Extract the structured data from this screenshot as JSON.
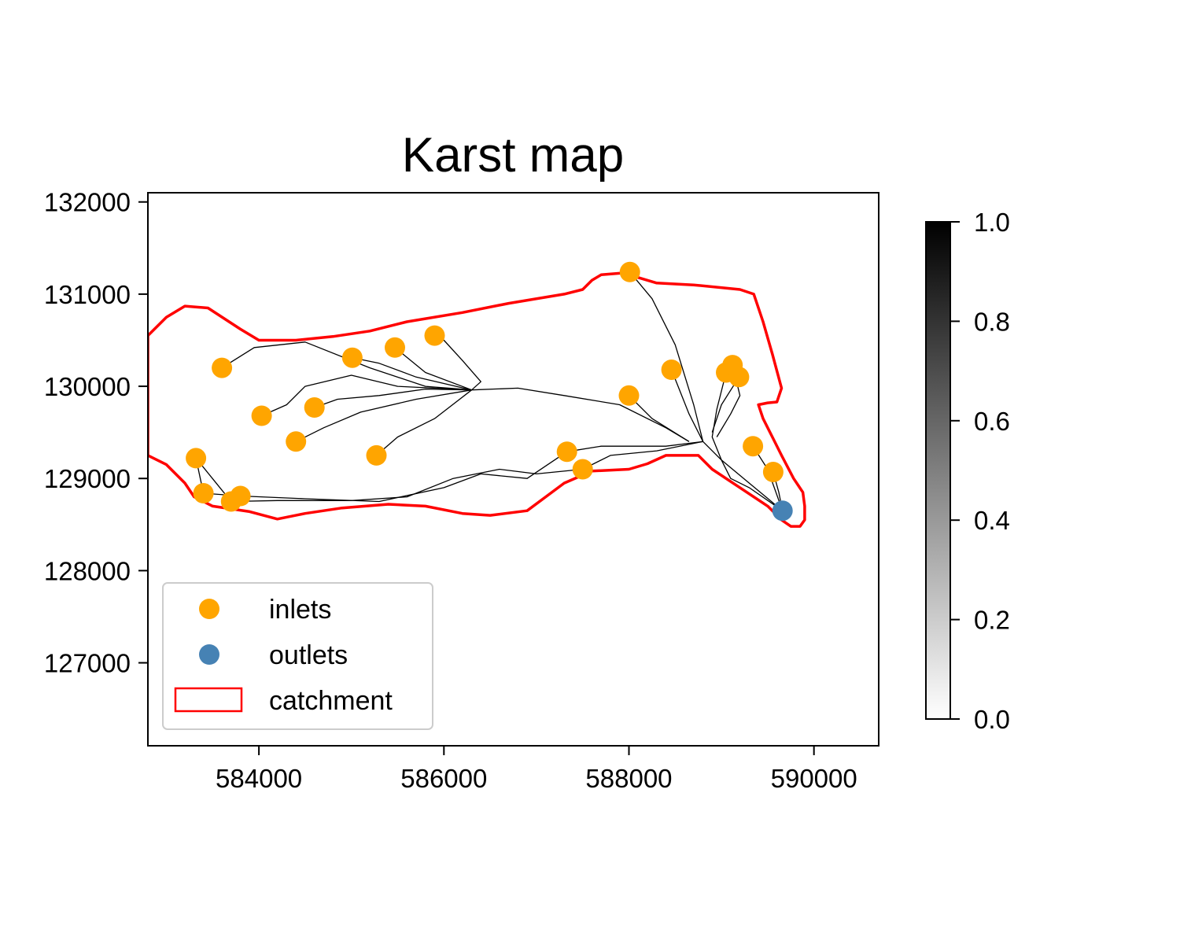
{
  "chart_data": {
    "type": "scatter",
    "title": "Karst map",
    "xlabel": "",
    "ylabel": "",
    "xlim": [
      582800,
      590700
    ],
    "ylim": [
      126100,
      132100
    ],
    "xticks": [
      584000,
      586000,
      588000,
      590000
    ],
    "yticks": [
      127000,
      128000,
      129000,
      130000,
      131000,
      132000
    ],
    "legend_position": "lower-left",
    "colors": {
      "inlets": "#FFA500",
      "outlets": "#4682B4",
      "catchment": "#FF0000",
      "conduits": "#000000"
    },
    "series": [
      {
        "name": "inlets",
        "marker": "circle",
        "points": [
          [
            583600,
            130200
          ],
          [
            584030,
            129680
          ],
          [
            584600,
            129770
          ],
          [
            584400,
            129400
          ],
          [
            585010,
            130310
          ],
          [
            585470,
            130420
          ],
          [
            585900,
            130550
          ],
          [
            585270,
            129250
          ],
          [
            583320,
            129220
          ],
          [
            583400,
            128840
          ],
          [
            583700,
            128750
          ],
          [
            583800,
            128810
          ],
          [
            588010,
            131240
          ],
          [
            588000,
            129900
          ],
          [
            588460,
            130180
          ],
          [
            589050,
            130150
          ],
          [
            589120,
            130230
          ],
          [
            589190,
            130100
          ],
          [
            589340,
            129350
          ],
          [
            589560,
            129070
          ],
          [
            587330,
            129290
          ],
          [
            587500,
            129100
          ]
        ]
      },
      {
        "name": "outlets",
        "marker": "circle",
        "points": [
          [
            589660,
            128650
          ]
        ]
      },
      {
        "name": "catchment",
        "type": "polygon",
        "points": [
          [
            582800,
            130550
          ],
          [
            583000,
            130750
          ],
          [
            583200,
            130870
          ],
          [
            583450,
            130850
          ],
          [
            583800,
            130620
          ],
          [
            584000,
            130500
          ],
          [
            584400,
            130500
          ],
          [
            584800,
            130540
          ],
          [
            585200,
            130600
          ],
          [
            585600,
            130700
          ],
          [
            586200,
            130800
          ],
          [
            586700,
            130900
          ],
          [
            587300,
            131000
          ],
          [
            587500,
            131050
          ],
          [
            587600,
            131150
          ],
          [
            587700,
            131210
          ],
          [
            587950,
            131230
          ],
          [
            588100,
            131180
          ],
          [
            588300,
            131120
          ],
          [
            588700,
            131100
          ],
          [
            589200,
            131050
          ],
          [
            589350,
            131000
          ],
          [
            589450,
            130700
          ],
          [
            589550,
            130350
          ],
          [
            589650,
            129980
          ],
          [
            589600,
            129830
          ],
          [
            589500,
            129820
          ],
          [
            589400,
            129800
          ],
          [
            589450,
            129650
          ],
          [
            589550,
            129450
          ],
          [
            589650,
            129250
          ],
          [
            589780,
            129000
          ],
          [
            589880,
            128850
          ],
          [
            589900,
            128700
          ],
          [
            589900,
            128550
          ],
          [
            589850,
            128480
          ],
          [
            589750,
            128480
          ],
          [
            589650,
            128550
          ],
          [
            589500,
            128700
          ],
          [
            589200,
            128900
          ],
          [
            588900,
            129100
          ],
          [
            588750,
            129250
          ],
          [
            588400,
            129250
          ],
          [
            588200,
            129160
          ],
          [
            588000,
            129100
          ],
          [
            587600,
            129080
          ],
          [
            587300,
            128950
          ],
          [
            587100,
            128800
          ],
          [
            586900,
            128650
          ],
          [
            586500,
            128600
          ],
          [
            586200,
            128620
          ],
          [
            585800,
            128700
          ],
          [
            585400,
            128720
          ],
          [
            584900,
            128680
          ],
          [
            584500,
            128620
          ],
          [
            584200,
            128560
          ],
          [
            583900,
            128640
          ],
          [
            583500,
            128700
          ],
          [
            583300,
            128800
          ],
          [
            583200,
            128950
          ],
          [
            583000,
            129150
          ],
          [
            582800,
            129250
          ]
        ]
      }
    ],
    "conduits": [
      [
        [
          583600,
          130200
        ],
        [
          583950,
          130420
        ],
        [
          584500,
          130480
        ],
        [
          585200,
          130200
        ],
        [
          585800,
          130000
        ],
        [
          586300,
          129960
        ]
      ],
      [
        [
          584030,
          129680
        ],
        [
          584300,
          129800
        ],
        [
          584500,
          130000
        ],
        [
          585000,
          130120
        ],
        [
          585500,
          130000
        ],
        [
          586300,
          129960
        ]
      ],
      [
        [
          584600,
          129770
        ],
        [
          584850,
          129860
        ],
        [
          585300,
          129900
        ],
        [
          585800,
          129970
        ],
        [
          586300,
          129960
        ]
      ],
      [
        [
          584400,
          129400
        ],
        [
          584700,
          129550
        ],
        [
          585100,
          129720
        ],
        [
          585700,
          129860
        ],
        [
          586300,
          129960
        ]
      ],
      [
        [
          585010,
          130310
        ],
        [
          585300,
          130250
        ],
        [
          585700,
          130100
        ],
        [
          586300,
          129960
        ]
      ],
      [
        [
          585470,
          130420
        ],
        [
          585800,
          130150
        ],
        [
          586300,
          129960
        ]
      ],
      [
        [
          585900,
          130550
        ],
        [
          586000,
          130500
        ],
        [
          586200,
          130280
        ],
        [
          586400,
          130050
        ],
        [
          586300,
          129960
        ]
      ],
      [
        [
          585270,
          129250
        ],
        [
          585500,
          129450
        ],
        [
          585900,
          129650
        ],
        [
          586300,
          129960
        ]
      ],
      [
        [
          586300,
          129960
        ],
        [
          586800,
          129980
        ],
        [
          587300,
          129900
        ],
        [
          587900,
          129800
        ],
        [
          588400,
          129550
        ],
        [
          588650,
          129400
        ]
      ],
      [
        [
          588010,
          131240
        ],
        [
          588250,
          130950
        ],
        [
          588500,
          130450
        ],
        [
          588700,
          129800
        ],
        [
          588800,
          129400
        ]
      ],
      [
        [
          588000,
          129900
        ],
        [
          588250,
          129650
        ],
        [
          588650,
          129400
        ]
      ],
      [
        [
          588460,
          130180
        ],
        [
          588650,
          129700
        ],
        [
          588800,
          129400
        ]
      ],
      [
        [
          589050,
          130150
        ],
        [
          588950,
          129750
        ],
        [
          588900,
          129450
        ],
        [
          589000,
          129200
        ],
        [
          589100,
          129000
        ],
        [
          589300,
          128900
        ],
        [
          589660,
          128650
        ]
      ],
      [
        [
          589120,
          130230
        ],
        [
          589200,
          129900
        ],
        [
          589100,
          129700
        ],
        [
          588950,
          129450
        ]
      ],
      [
        [
          589190,
          130100
        ],
        [
          589000,
          129800
        ],
        [
          588900,
          129500
        ]
      ],
      [
        [
          589340,
          129350
        ],
        [
          589500,
          129100
        ],
        [
          589660,
          128650
        ]
      ],
      [
        [
          589560,
          129070
        ],
        [
          589620,
          128850
        ],
        [
          589660,
          128650
        ]
      ],
      [
        [
          588800,
          129400
        ],
        [
          589000,
          129200
        ],
        [
          589300,
          128950
        ],
        [
          589660,
          128650
        ]
      ],
      [
        [
          587330,
          129290
        ],
        [
          587700,
          129350
        ],
        [
          588400,
          129350
        ],
        [
          588800,
          129400
        ]
      ],
      [
        [
          587500,
          129100
        ],
        [
          587800,
          129250
        ],
        [
          588300,
          129300
        ],
        [
          588800,
          129400
        ]
      ],
      [
        [
          583320,
          129220
        ],
        [
          583400,
          128840
        ],
        [
          583800,
          128810
        ],
        [
          584500,
          128780
        ],
        [
          585300,
          128750
        ],
        [
          586000,
          128900
        ],
        [
          586400,
          129050
        ],
        [
          586900,
          129000
        ],
        [
          587330,
          129290
        ]
      ],
      [
        [
          583700,
          128750
        ],
        [
          584200,
          128760
        ],
        [
          585000,
          128760
        ],
        [
          585600,
          128800
        ],
        [
          586100,
          129000
        ],
        [
          586600,
          129100
        ],
        [
          587000,
          129050
        ],
        [
          587500,
          129100
        ]
      ],
      [
        [
          583320,
          129220
        ],
        [
          583700,
          128750
        ]
      ]
    ],
    "colorbar": {
      "min": 0.0,
      "max": 1.0,
      "ticks": [
        "0.0",
        "0.2",
        "0.4",
        "0.6",
        "0.8",
        "1.0"
      ],
      "colormap": "binary (white to black)"
    },
    "legend": [
      {
        "label": "inlets",
        "kind": "marker"
      },
      {
        "label": "outlets",
        "kind": "marker"
      },
      {
        "label": "catchment",
        "kind": "patch"
      }
    ]
  }
}
